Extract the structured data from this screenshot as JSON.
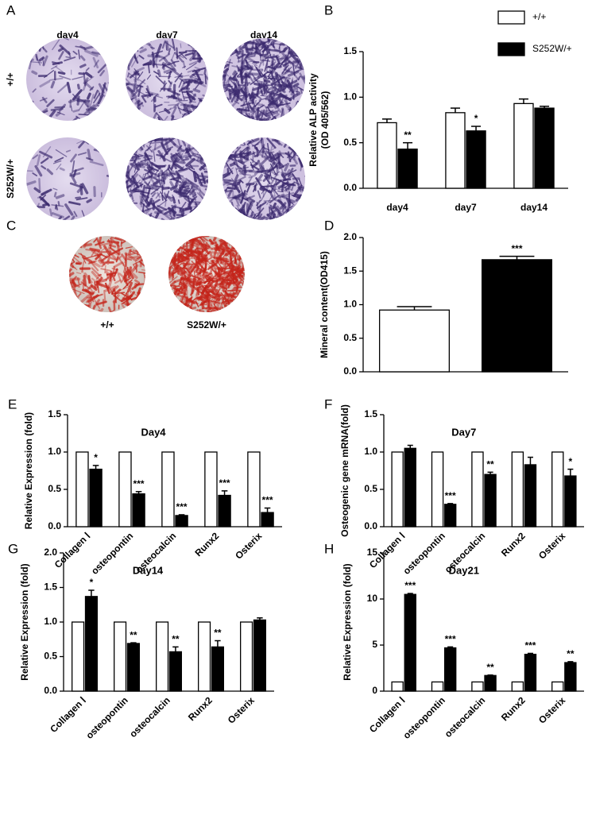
{
  "images": [
    {
      "panel": "A",
      "columns": [
        "day4",
        "day7",
        "day14"
      ],
      "rows": [
        "+/+",
        "S252W/+"
      ]
    },
    {
      "panel": "C",
      "labels": [
        "+/+",
        "S252W/+"
      ]
    }
  ],
  "chart_data": [
    {
      "type": "bar",
      "panel": "B",
      "ylabel": [
        "Relative ALP activity",
        "(OD 405/562)"
      ],
      "categories": [
        "day4",
        "day7",
        "day14"
      ],
      "series": [
        {
          "name": "+/+",
          "color": "#ffffff",
          "values": [
            0.72,
            0.83,
            0.93
          ],
          "errors": [
            0.04,
            0.05,
            0.05
          ]
        },
        {
          "name": "S252W/+",
          "color": "#000000",
          "values": [
            0.43,
            0.63,
            0.88
          ],
          "errors": [
            0.07,
            0.05,
            0.02
          ]
        }
      ],
      "annotations": [
        "**",
        "*",
        null
      ],
      "ylim": [
        0,
        1.5
      ],
      "yticks": [
        {
          "value": 0,
          "label": "0.0"
        },
        0.5,
        {
          "value": 1,
          "label": "1.0"
        },
        1.5
      ],
      "legend": "top"
    },
    {
      "type": "bar",
      "panel": "D",
      "ylabel": "Mineral content(OD415)",
      "categories": [
        null,
        null
      ],
      "values": [
        0.92,
        1.67
      ],
      "errors": [
        0.05,
        0.05
      ],
      "colors": [
        "#ffffff",
        "#000000"
      ],
      "annotations": [
        null,
        "***"
      ],
      "ylim": [
        0,
        2
      ],
      "yticks": [
        {
          "value": 0,
          "label": "0.0"
        },
        0.5,
        {
          "value": 1,
          "label": "1.0"
        },
        1.5,
        {
          "value": 2,
          "label": "2.0"
        }
      ]
    },
    {
      "type": "bar",
      "panel": "E",
      "title": "Day4",
      "ylabel": "Relative Expression (fold)",
      "categories": [
        "Collagen Ⅰ",
        "osteopontin",
        "osteocalcin",
        "Runx2",
        "Osterix"
      ],
      "series": [
        {
          "color": "#ffffff",
          "values": [
            1,
            1,
            1,
            1,
            1
          ]
        },
        {
          "color": "#000000",
          "values": [
            0.77,
            0.44,
            0.15,
            0.42,
            0.19
          ],
          "errors": [
            0.05,
            0.03,
            0.01,
            0.06,
            0.06
          ]
        }
      ],
      "annotations": [
        "*",
        "***",
        "***",
        "***",
        "***"
      ],
      "ylim": [
        0,
        1.5
      ],
      "yticks": [
        {
          "value": 0,
          "label": "0.0"
        },
        0.5,
        {
          "value": 1,
          "label": "1.0"
        },
        1.5
      ]
    },
    {
      "type": "bar",
      "panel": "F",
      "title": "Day7",
      "ylabel": "Osteogenic gene mRNA(fold)",
      "categories": [
        "Collagen Ⅰ",
        "osteopontin",
        "osteocalcin",
        "Runx2",
        "Osterix"
      ],
      "series": [
        {
          "color": "#ffffff",
          "values": [
            1,
            1,
            1,
            1,
            1
          ]
        },
        {
          "color": "#000000",
          "values": [
            1.05,
            0.3,
            0.7,
            0.83,
            0.68
          ],
          "errors": [
            0.04,
            0.01,
            0.03,
            0.1,
            0.09
          ]
        }
      ],
      "annotations": [
        null,
        "***",
        "**",
        null,
        "*"
      ],
      "ylim": [
        0,
        1.5
      ],
      "yticks": [
        {
          "value": 0,
          "label": "0.0"
        },
        0.5,
        {
          "value": 1,
          "label": "1.0"
        },
        1.5
      ]
    },
    {
      "type": "bar",
      "panel": "G",
      "title": "Day14",
      "ylabel": "Relative Expression (fold)",
      "categories": [
        "Collagen Ⅰ",
        "osteopontin",
        "osteocalcin",
        "Runx2",
        "Osterix"
      ],
      "series": [
        {
          "color": "#ffffff",
          "values": [
            1,
            1,
            1,
            1,
            1
          ]
        },
        {
          "color": "#000000",
          "values": [
            1.37,
            0.69,
            0.57,
            0.64,
            1.03
          ],
          "errors": [
            0.09,
            0.01,
            0.07,
            0.09,
            0.03
          ]
        }
      ],
      "annotations": [
        "*",
        "**",
        "**",
        "**",
        null
      ],
      "ylim": [
        0,
        2
      ],
      "yticks": [
        {
          "value": 0,
          "label": "0.0"
        },
        0.5,
        {
          "value": 1,
          "label": "1.0"
        },
        1.5,
        {
          "value": 2,
          "label": "2.0"
        }
      ]
    },
    {
      "type": "bar",
      "panel": "H",
      "title": "Day21",
      "ylabel": "Relative Expression (fold)",
      "categories": [
        "Collagen Ⅰ",
        "osteopontin",
        "osteocalcin",
        "Runx2",
        "Osterix"
      ],
      "series": [
        {
          "color": "#ffffff",
          "values": [
            1,
            1,
            1,
            1,
            1
          ]
        },
        {
          "color": "#000000",
          "values": [
            10.5,
            4.7,
            1.7,
            4.0,
            3.1
          ],
          "errors": [
            0.1,
            0.1,
            0.05,
            0.1,
            0.1
          ]
        }
      ],
      "annotations": [
        "***",
        "***",
        "**",
        "***",
        "**"
      ],
      "ylim": [
        0,
        15
      ],
      "yticks": [
        0,
        5,
        10,
        15
      ]
    }
  ]
}
